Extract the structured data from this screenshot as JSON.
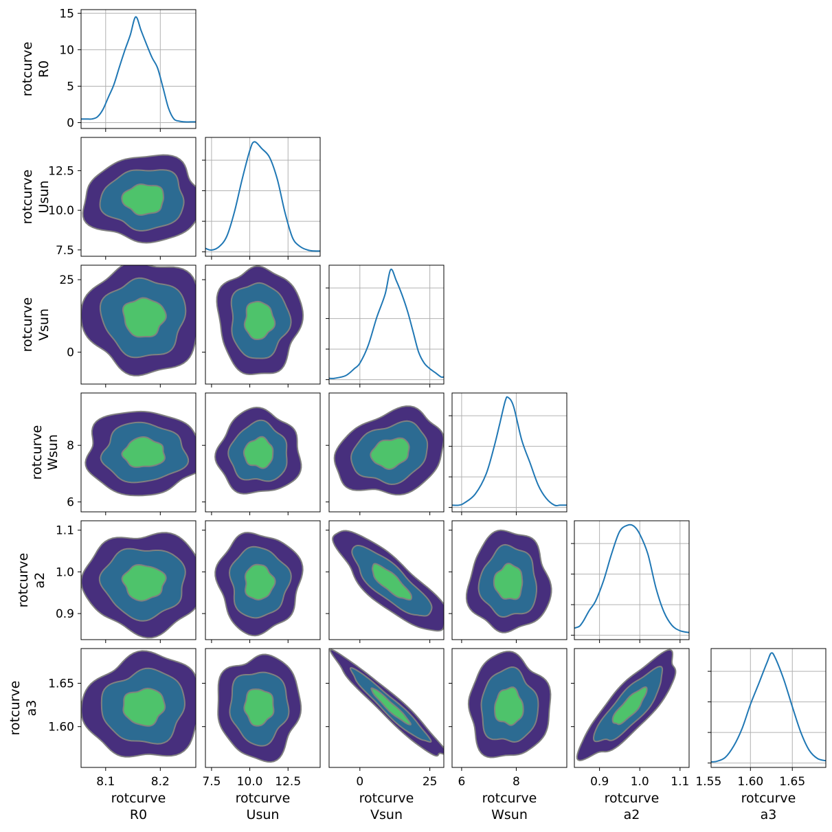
{
  "figure": {
    "type": "corner-plot"
  },
  "colors": {
    "kde_line": "#1f77b4",
    "contour_outer": "#472f7d",
    "contour_mid": "#2c6b92",
    "contour_inner": "#4ec36b",
    "contour_edge": "#808080",
    "grid": "#b0b0b0",
    "frame": "#000000"
  },
  "chart_data": {
    "type": "corner",
    "params": [
      {
        "key": "R0",
        "label": [
          "rotcurve",
          "R0"
        ],
        "lim": [
          8.055,
          8.265
        ],
        "ticks": [
          8.1,
          8.2
        ],
        "ticklabels": [
          "8.1",
          "8.2"
        ]
      },
      {
        "key": "Usun",
        "label": [
          "rotcurve",
          "Usun"
        ],
        "lim": [
          7.1,
          14.6
        ],
        "ticks": [
          7.5,
          10.0,
          12.5
        ],
        "ticklabels": [
          "7.5",
          "10.0",
          "12.5"
        ]
      },
      {
        "key": "Vsun",
        "label": [
          "rotcurve",
          "Vsun"
        ],
        "lim": [
          -11,
          30
        ],
        "ticks": [
          0,
          25
        ],
        "ticklabels": [
          "0",
          "25"
        ]
      },
      {
        "key": "Wsun",
        "label": [
          "rotcurve",
          "Wsun"
        ],
        "lim": [
          5.65,
          9.85
        ],
        "ticks": [
          6,
          8
        ],
        "ticklabels": [
          "6",
          "8"
        ]
      },
      {
        "key": "a2",
        "label": [
          "rotcurve",
          "a2"
        ],
        "lim": [
          0.8375,
          1.1225
        ],
        "ticks": [
          0.9,
          1.0,
          1.1
        ],
        "ticklabels": [
          "0.9",
          "1.0",
          "1.1"
        ]
      },
      {
        "key": "a3",
        "label": [
          "rotcurve",
          "a3"
        ],
        "lim": [
          1.553,
          1.69
        ],
        "ticks": [
          1.6,
          1.65
        ],
        "ticklabels": [
          "1.60",
          "1.65"
        ],
        "xticks": [
          1.55,
          1.6,
          1.65
        ],
        "xticklabels": [
          "1.55",
          "1.60",
          "1.65"
        ]
      }
    ],
    "diag_ylabels": {
      "R0": {
        "ticks": [
          0,
          5,
          10,
          15
        ],
        "ticklabels": [
          "0",
          "5",
          "10",
          "15"
        ],
        "ylim": [
          -0.8,
          15.5
        ]
      }
    },
    "marginals": [
      {
        "param": "R0",
        "x": [
          8.055,
          8.065,
          8.075,
          8.085,
          8.095,
          8.105,
          8.115,
          8.125,
          8.135,
          8.145,
          8.155,
          8.165,
          8.175,
          8.185,
          8.195,
          8.205,
          8.215,
          8.225,
          8.235,
          8.245,
          8.255,
          8.265
        ],
        "y": [
          0.5,
          0.5,
          0.5,
          0.8,
          1.8,
          3.5,
          5.2,
          7.6,
          9.9,
          12.0,
          14.5,
          12.6,
          10.7,
          8.9,
          7.5,
          4.8,
          2.0,
          0.5,
          0.2,
          0.1,
          0.1,
          0.1
        ]
      },
      {
        "param": "Usun",
        "x": [
          7.1,
          7.5,
          8.0,
          8.5,
          9.0,
          9.5,
          10.0,
          10.3,
          10.8,
          11.3,
          11.8,
          12.3,
          12.8,
          13.3,
          13.8,
          14.2,
          14.6
        ],
        "y": [
          0.4,
          0.2,
          0.6,
          1.8,
          4.6,
          8.3,
          11.6,
          12.6,
          11.8,
          10.8,
          8.3,
          4.5,
          1.6,
          0.6,
          0.2,
          0.1,
          0.1
        ]
      },
      {
        "param": "Vsun",
        "x": [
          -11,
          -9,
          -5,
          -2,
          0,
          3,
          6,
          9,
          11,
          13,
          15,
          17,
          19,
          21,
          23,
          25,
          27,
          29,
          30
        ],
        "y": [
          0.01,
          0.01,
          0.03,
          0.08,
          0.12,
          0.25,
          0.45,
          0.62,
          0.8,
          0.72,
          0.62,
          0.5,
          0.35,
          0.2,
          0.12,
          0.08,
          0.05,
          0.02,
          0.02
        ]
      },
      {
        "param": "Wsun",
        "x": [
          5.65,
          5.9,
          6.1,
          6.5,
          6.9,
          7.2,
          7.4,
          7.6,
          7.7,
          7.9,
          8.2,
          8.5,
          8.8,
          9.1,
          9.4,
          9.6,
          9.85
        ],
        "y": [
          0.02,
          0.02,
          0.04,
          0.12,
          0.3,
          0.55,
          0.75,
          0.95,
          0.98,
          0.9,
          0.6,
          0.4,
          0.2,
          0.08,
          0.02,
          0.02,
          0.02
        ]
      },
      {
        "param": "a2",
        "x": [
          0.8375,
          0.85,
          0.86,
          0.875,
          0.89,
          0.91,
          0.93,
          0.95,
          0.97,
          0.985,
          1.0,
          1.02,
          1.04,
          1.06,
          1.08,
          1.1,
          1.1225
        ],
        "y": [
          0.8,
          1.0,
          1.6,
          2.8,
          3.8,
          6.1,
          9.1,
          11.6,
          12.3,
          12.2,
          11.3,
          9.1,
          5.3,
          2.6,
          1.1,
          0.5,
          0.3
        ]
      },
      {
        "param": "a3",
        "x": [
          1.553,
          1.56,
          1.57,
          1.58,
          1.59,
          1.6,
          1.61,
          1.62,
          1.625,
          1.63,
          1.64,
          1.65,
          1.66,
          1.67,
          1.68,
          1.69
        ],
        "y": [
          0.2,
          0.3,
          1.0,
          3.0,
          6.1,
          10.4,
          14.1,
          17.9,
          19.5,
          18.5,
          14.7,
          10.0,
          5.5,
          2.3,
          0.8,
          0.4
        ]
      }
    ],
    "pairs": [
      {
        "x": "R0",
        "y": "Usun",
        "center": [
          8.17,
          10.7
        ],
        "sigma": [
          0.038,
          0.95
        ],
        "rho": 0.02
      },
      {
        "x": "R0",
        "y": "Vsun",
        "center": [
          8.17,
          12.0
        ],
        "sigma": [
          0.038,
          6.7
        ],
        "rho": 0.0
      },
      {
        "x": "Usun",
        "y": "Vsun",
        "center": [
          10.6,
          11.0
        ],
        "sigma": [
          0.95,
          6.5
        ],
        "rho": 0.0
      },
      {
        "x": "R0",
        "y": "Wsun",
        "center": [
          8.17,
          7.73
        ],
        "sigma": [
          0.038,
          0.52
        ],
        "rho": 0.0
      },
      {
        "x": "Usun",
        "y": "Wsun",
        "center": [
          10.6,
          7.73
        ],
        "sigma": [
          0.95,
          0.52
        ],
        "rho": 0.0
      },
      {
        "x": "Vsun",
        "y": "Wsun",
        "center": [
          11.0,
          7.73
        ],
        "sigma": [
          6.8,
          0.52
        ],
        "rho": 0.2
      },
      {
        "x": "R0",
        "y": "a2",
        "center": [
          8.17,
          0.975
        ],
        "sigma": [
          0.038,
          0.042
        ],
        "rho": 0.0
      },
      {
        "x": "Usun",
        "y": "a2",
        "center": [
          10.6,
          0.975
        ],
        "sigma": [
          0.95,
          0.042
        ],
        "rho": 0.0
      },
      {
        "x": "Vsun",
        "y": "a2",
        "center": [
          11.0,
          0.975
        ],
        "sigma": [
          7.0,
          0.042
        ],
        "rho": -0.82
      },
      {
        "x": "Wsun",
        "y": "a2",
        "center": [
          7.73,
          0.975
        ],
        "sigma": [
          0.52,
          0.042
        ],
        "rho": 0.0
      },
      {
        "x": "R0",
        "y": "a3",
        "center": [
          8.17,
          1.623
        ],
        "sigma": [
          0.038,
          0.021
        ],
        "rho": 0.05
      },
      {
        "x": "Usun",
        "y": "a3",
        "center": [
          10.6,
          1.623
        ],
        "sigma": [
          0.95,
          0.021
        ],
        "rho": 0.0
      },
      {
        "x": "Vsun",
        "y": "a3",
        "center": [
          11.0,
          1.623
        ],
        "sigma": [
          7.0,
          0.021
        ],
        "rho": -0.96
      },
      {
        "x": "Wsun",
        "y": "a3",
        "center": [
          7.73,
          1.623
        ],
        "sigma": [
          0.52,
          0.021
        ],
        "rho": 0.0
      },
      {
        "x": "a2",
        "y": "a3",
        "center": [
          0.975,
          1.623
        ],
        "sigma": [
          0.042,
          0.021
        ],
        "rho": 0.83
      }
    ],
    "contour_levels_sigma": [
      1.0,
      2.0,
      2.85
    ],
    "grid": true
  }
}
